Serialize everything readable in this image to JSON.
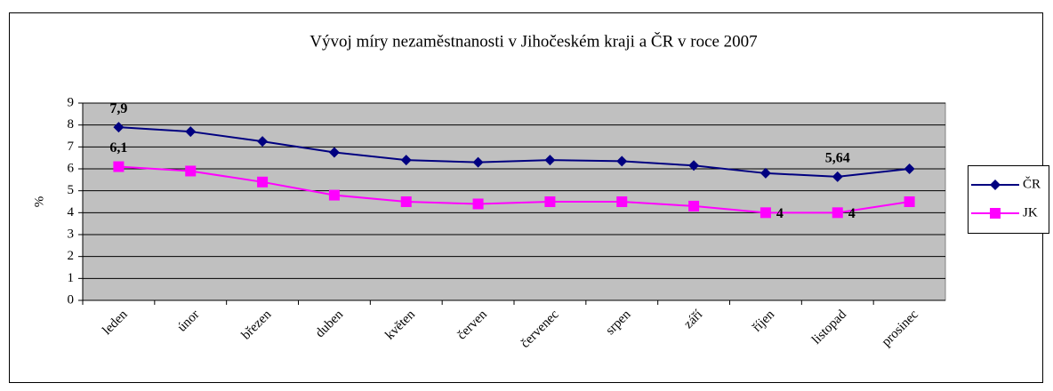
{
  "chart_data": {
    "type": "line",
    "title": "Vývoj míry nezaměstnanosti v Jihočeském kraji a ČR v roce 2007",
    "y_label": "%",
    "categories": [
      "leden",
      "únor",
      "březen",
      "duben",
      "květen",
      "červen",
      "červenec",
      "srpen",
      "září",
      "říjen",
      "listopad",
      "prosinec"
    ],
    "series": [
      {
        "name": "ČR",
        "color": "#000080",
        "marker": "diamond",
        "values": [
          7.9,
          7.7,
          7.25,
          6.75,
          6.4,
          6.3,
          6.4,
          6.35,
          6.15,
          5.8,
          5.64,
          6.0
        ],
        "value_labels": [
          "7,9",
          null,
          null,
          null,
          null,
          null,
          null,
          null,
          null,
          null,
          "5,64",
          null
        ]
      },
      {
        "name": "JK",
        "color": "#ff00ff",
        "marker": "square",
        "values": [
          6.1,
          5.9,
          5.4,
          4.8,
          4.5,
          4.4,
          4.5,
          4.5,
          4.3,
          4.0,
          4.0,
          4.5
        ],
        "value_labels": [
          "6,1",
          null,
          null,
          null,
          null,
          null,
          null,
          null,
          null,
          "4",
          "4",
          null
        ]
      }
    ],
    "ylim": [
      0,
      9
    ],
    "yticks": [
      0,
      1,
      2,
      3,
      4,
      5,
      6,
      7,
      8,
      9
    ],
    "grid": true,
    "legend": "right"
  }
}
